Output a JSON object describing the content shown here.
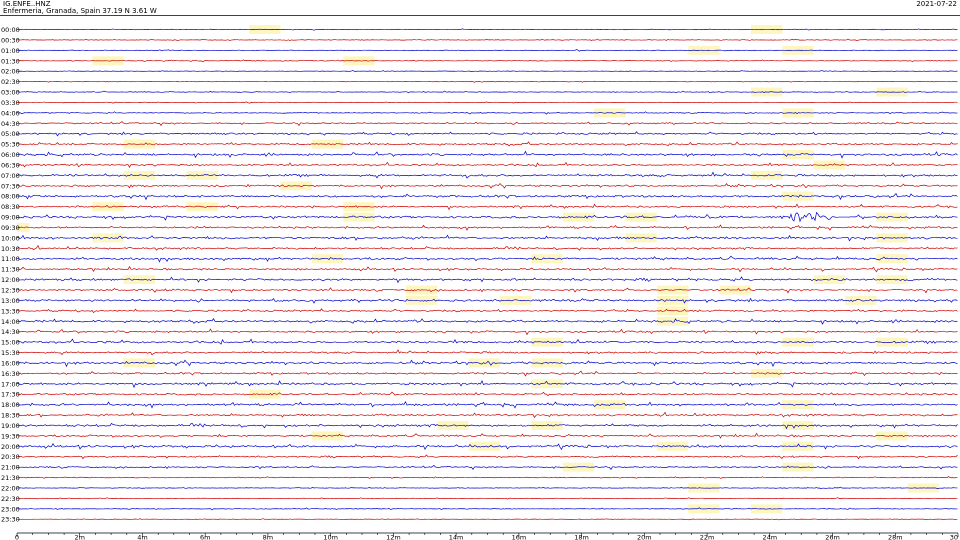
{
  "header": {
    "station_code": "IG.ENFE..HNZ",
    "station_location": "Enfermeria, Granada, Spain  37.19 N 3.61 W",
    "date": "2021-07-22"
  },
  "chart_data": {
    "type": "line",
    "title": "",
    "xlabel": "",
    "ylabel": "",
    "x_unit": "minutes",
    "xlim": [
      0,
      30
    ],
    "x_ticks": [
      {
        "value": 0,
        "label": "0"
      },
      {
        "value": 2,
        "label": "2m"
      },
      {
        "value": 4,
        "label": "4m"
      },
      {
        "value": 6,
        "label": "6m"
      },
      {
        "value": 8,
        "label": "8m"
      },
      {
        "value": 10,
        "label": "10m"
      },
      {
        "value": 12,
        "label": "12m"
      },
      {
        "value": 14,
        "label": "14m"
      },
      {
        "value": 16,
        "label": "16m"
      },
      {
        "value": 18,
        "label": "18m"
      },
      {
        "value": 20,
        "label": "20m"
      },
      {
        "value": 22,
        "label": "22m"
      },
      {
        "value": 24,
        "label": "24m"
      },
      {
        "value": 26,
        "label": "26m"
      },
      {
        "value": 28,
        "label": "28m"
      },
      {
        "value": 30,
        "label": "30"
      }
    ],
    "trace_colors": [
      "#0000cc",
      "#cc0000"
    ],
    "highlight_color": "#fdf7bf",
    "rows": [
      {
        "label": "00:00",
        "noise": 0.15,
        "highlights": [
          [
            7.4,
            8.4
          ],
          [
            23.4,
            24.4
          ]
        ]
      },
      {
        "label": "00:30",
        "noise": 0.2,
        "highlights": []
      },
      {
        "label": "01:00",
        "noise": 0.15,
        "highlights": [
          [
            21.4,
            22.4
          ],
          [
            24.4,
            25.4
          ]
        ]
      },
      {
        "label": "01:30",
        "noise": 0.2,
        "highlights": [
          [
            2.4,
            3.4
          ],
          [
            10.4,
            11.4
          ]
        ]
      },
      {
        "label": "02:00",
        "noise": 0.15,
        "highlights": []
      },
      {
        "label": "02:30",
        "noise": 0.15,
        "highlights": []
      },
      {
        "label": "03:00",
        "noise": 0.2,
        "highlights": [
          [
            23.4,
            24.4
          ],
          [
            27.4,
            28.4
          ]
        ]
      },
      {
        "label": "03:30",
        "noise": 0.15,
        "highlights": []
      },
      {
        "label": "04:00",
        "noise": 0.25,
        "highlights": [
          [
            18.4,
            19.4
          ],
          [
            24.4,
            25.4
          ]
        ]
      },
      {
        "label": "04:30",
        "noise": 0.4,
        "highlights": []
      },
      {
        "label": "05:00",
        "noise": 0.5,
        "highlights": []
      },
      {
        "label": "05:30",
        "noise": 0.5,
        "highlights": [
          [
            3.4,
            4.4
          ],
          [
            9.4,
            10.4
          ]
        ]
      },
      {
        "label": "06:00",
        "noise": 0.6,
        "highlights": [
          [
            24.4,
            25.4
          ]
        ]
      },
      {
        "label": "06:30",
        "noise": 0.5,
        "highlights": [
          [
            25.4,
            26.4
          ]
        ]
      },
      {
        "label": "07:00",
        "noise": 0.6,
        "highlights": [
          [
            3.4,
            4.4
          ],
          [
            5.4,
            6.4
          ],
          [
            23.4,
            24.4
          ]
        ]
      },
      {
        "label": "07:30",
        "noise": 0.5,
        "highlights": [
          [
            8.4,
            9.4
          ]
        ]
      },
      {
        "label": "08:00",
        "noise": 0.6,
        "highlights": [
          [
            24.4,
            25.4
          ]
        ]
      },
      {
        "label": "08:30",
        "noise": 0.5,
        "highlights": [
          [
            2.4,
            3.4
          ],
          [
            5.4,
            6.4
          ],
          [
            10.4,
            11.4
          ]
        ]
      },
      {
        "label": "09:00",
        "noise": 0.6,
        "highlights": [
          [
            10.4,
            11.4
          ],
          [
            17.4,
            18.4
          ],
          [
            19.4,
            20.4
          ],
          [
            27.4,
            28.4
          ]
        ],
        "burst": [
          24.2,
          26.5
        ]
      },
      {
        "label": "09:30",
        "noise": 0.5,
        "highlights": [
          [
            0,
            0.4
          ]
        ]
      },
      {
        "label": "10:00",
        "noise": 0.6,
        "highlights": [
          [
            2.4,
            3.4
          ],
          [
            19.4,
            20.4
          ],
          [
            27.4,
            28.4
          ]
        ]
      },
      {
        "label": "10:30",
        "noise": 0.5,
        "highlights": []
      },
      {
        "label": "11:00",
        "noise": 0.6,
        "highlights": [
          [
            9.4,
            10.4
          ],
          [
            16.4,
            17.4
          ],
          [
            27.4,
            28.4
          ]
        ]
      },
      {
        "label": "11:30",
        "noise": 0.5,
        "highlights": []
      },
      {
        "label": "12:00",
        "noise": 0.6,
        "highlights": [
          [
            3.4,
            4.4
          ],
          [
            25.4,
            26.4
          ],
          [
            27.4,
            28.4
          ]
        ]
      },
      {
        "label": "12:30",
        "noise": 0.5,
        "highlights": [
          [
            12.4,
            13.4
          ],
          [
            20.4,
            21.4
          ],
          [
            22.4,
            23.4
          ]
        ]
      },
      {
        "label": "13:00",
        "noise": 0.6,
        "highlights": [
          [
            12.4,
            13.4
          ],
          [
            15.4,
            16.4
          ],
          [
            20.4,
            21.4
          ],
          [
            26.4,
            27.4
          ]
        ]
      },
      {
        "label": "13:30",
        "noise": 0.5,
        "highlights": [
          [
            20.4,
            21.4
          ]
        ]
      },
      {
        "label": "14:00",
        "noise": 0.6,
        "highlights": [
          [
            20.4,
            21.4
          ]
        ]
      },
      {
        "label": "14:30",
        "noise": 0.5,
        "highlights": []
      },
      {
        "label": "15:00",
        "noise": 0.6,
        "highlights": [
          [
            16.4,
            17.4
          ],
          [
            24.4,
            25.4
          ],
          [
            27.4,
            28.4
          ]
        ]
      },
      {
        "label": "15:30",
        "noise": 0.5,
        "highlights": []
      },
      {
        "label": "16:00",
        "noise": 0.6,
        "highlights": [
          [
            3.4,
            4.4
          ],
          [
            14.4,
            15.4
          ],
          [
            16.4,
            17.4
          ]
        ]
      },
      {
        "label": "16:30",
        "noise": 0.5,
        "highlights": [
          [
            23.4,
            24.4
          ]
        ]
      },
      {
        "label": "17:00",
        "noise": 0.6,
        "highlights": [
          [
            16.4,
            17.4
          ]
        ]
      },
      {
        "label": "17:30",
        "noise": 0.5,
        "highlights": [
          [
            7.4,
            8.4
          ]
        ]
      },
      {
        "label": "18:00",
        "noise": 0.6,
        "highlights": [
          [
            18.4,
            19.4
          ],
          [
            24.4,
            25.4
          ]
        ]
      },
      {
        "label": "18:30",
        "noise": 0.5,
        "highlights": []
      },
      {
        "label": "19:00",
        "noise": 0.6,
        "highlights": [
          [
            13.4,
            14.4
          ],
          [
            16.4,
            17.4
          ],
          [
            24.4,
            25.4
          ]
        ]
      },
      {
        "label": "19:30",
        "noise": 0.5,
        "highlights": [
          [
            9.4,
            10.4
          ],
          [
            27.4,
            28.4
          ]
        ]
      },
      {
        "label": "20:00",
        "noise": 0.6,
        "highlights": [
          [
            14.4,
            15.4
          ],
          [
            20.4,
            21.4
          ],
          [
            24.4,
            25.4
          ]
        ]
      },
      {
        "label": "20:30",
        "noise": 0.4,
        "highlights": []
      },
      {
        "label": "21:00",
        "noise": 0.4,
        "highlights": [
          [
            17.4,
            18.4
          ],
          [
            24.4,
            25.4
          ]
        ]
      },
      {
        "label": "21:30",
        "noise": 0.25,
        "highlights": []
      },
      {
        "label": "22:00",
        "noise": 0.2,
        "highlights": [
          [
            21.4,
            22.4
          ],
          [
            28.4,
            29.4
          ]
        ]
      },
      {
        "label": "22:30",
        "noise": 0.15,
        "highlights": []
      },
      {
        "label": "23:00",
        "noise": 0.2,
        "highlights": [
          [
            21.4,
            22.4
          ],
          [
            23.4,
            24.4
          ]
        ]
      },
      {
        "label": "23:30",
        "noise": 0.15,
        "highlights": []
      }
    ]
  }
}
